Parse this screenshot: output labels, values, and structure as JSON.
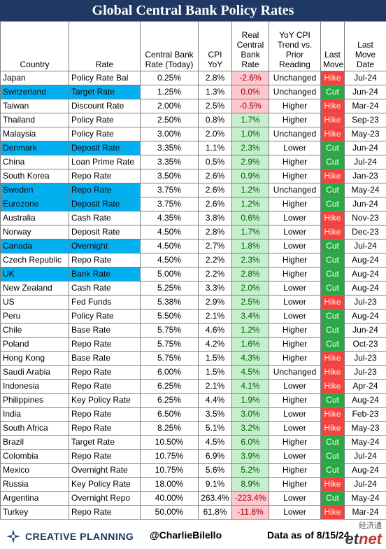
{
  "title": "Global Central Bank Policy Rates",
  "headers": [
    "Country",
    "Rate",
    "Central Bank Rate (Today)",
    "CPI YoY",
    "Real Central Bank Rate",
    "YoY CPI Trend vs. Prior Reading",
    "Last Move",
    "Last Move Date"
  ],
  "header_display": {
    "country": "Country",
    "rate": "Rate",
    "cbr": "Central Bank Rate (Today)",
    "cpi": "CPI YoY",
    "real": "Real Central Bank Rate",
    "trend": "YoY CPI Trend vs. Prior Reading",
    "move": "Last Move",
    "date": "Last Move Date"
  },
  "rows": [
    {
      "country": "Japan",
      "rate": "Policy Rate Bal",
      "cbr": "0.25%",
      "cpi": "2.8%",
      "real": "-2.6%",
      "trend": "Unchanged",
      "move": "Hike",
      "date": "Jul-24",
      "highlight": false
    },
    {
      "country": "Switzerland",
      "rate": "Target Rate",
      "cbr": "1.25%",
      "cpi": "1.3%",
      "real": "0.0%",
      "trend": "Unchanged",
      "move": "Cut",
      "date": "Jun-24",
      "highlight": true
    },
    {
      "country": "Taiwan",
      "rate": "Discount Rate",
      "cbr": "2.00%",
      "cpi": "2.5%",
      "real": "-0.5%",
      "trend": "Higher",
      "move": "Hike",
      "date": "Mar-24",
      "highlight": false
    },
    {
      "country": "Thailand",
      "rate": "Policy Rate",
      "cbr": "2.50%",
      "cpi": "0.8%",
      "real": "1.7%",
      "trend": "Higher",
      "move": "Hike",
      "date": "Sep-23",
      "highlight": false
    },
    {
      "country": "Malaysia",
      "rate": "Policy Rate",
      "cbr": "3.00%",
      "cpi": "2.0%",
      "real": "1.0%",
      "trend": "Unchanged",
      "move": "Hike",
      "date": "May-23",
      "highlight": false
    },
    {
      "country": "Denmark",
      "rate": "Deposit Rate",
      "cbr": "3.35%",
      "cpi": "1.1%",
      "real": "2.3%",
      "trend": "Lower",
      "move": "Cut",
      "date": "Jun-24",
      "highlight": true
    },
    {
      "country": "China",
      "rate": "Loan Prime Rate",
      "cbr": "3.35%",
      "cpi": "0.5%",
      "real": "2.9%",
      "trend": "Higher",
      "move": "Cut",
      "date": "Jul-24",
      "highlight": false
    },
    {
      "country": "South Korea",
      "rate": "Repo Rate",
      "cbr": "3.50%",
      "cpi": "2.6%",
      "real": "0.9%",
      "trend": "Higher",
      "move": "Hike",
      "date": "Jan-23",
      "highlight": false
    },
    {
      "country": "Sweden",
      "rate": "Repo Rate",
      "cbr": "3.75%",
      "cpi": "2.6%",
      "real": "1.2%",
      "trend": "Unchanged",
      "move": "Cut",
      "date": "May-24",
      "highlight": true
    },
    {
      "country": "Eurozone",
      "rate": "Deposit Rate",
      "cbr": "3.75%",
      "cpi": "2.6%",
      "real": "1.2%",
      "trend": "Higher",
      "move": "Cut",
      "date": "Jun-24",
      "highlight": true
    },
    {
      "country": "Australia",
      "rate": "Cash Rate",
      "cbr": "4.35%",
      "cpi": "3.8%",
      "real": "0.6%",
      "trend": "Lower",
      "move": "Hike",
      "date": "Nov-23",
      "highlight": false
    },
    {
      "country": "Norway",
      "rate": "Deposit Rate",
      "cbr": "4.50%",
      "cpi": "2.8%",
      "real": "1.7%",
      "trend": "Lower",
      "move": "Hike",
      "date": "Dec-23",
      "highlight": false
    },
    {
      "country": "Canada",
      "rate": "Overnight",
      "cbr": "4.50%",
      "cpi": "2.7%",
      "real": "1.8%",
      "trend": "Lower",
      "move": "Cut",
      "date": "Jul-24",
      "highlight": true
    },
    {
      "country": "Czech Republic",
      "rate": "Repo Rate",
      "cbr": "4.50%",
      "cpi": "2.2%",
      "real": "2.3%",
      "trend": "Higher",
      "move": "Cut",
      "date": "Aug-24",
      "highlight": false
    },
    {
      "country": "UK",
      "rate": "Bank Rate",
      "cbr": "5.00%",
      "cpi": "2.2%",
      "real": "2.8%",
      "trend": "Higher",
      "move": "Cut",
      "date": "Aug-24",
      "highlight": true
    },
    {
      "country": "New Zealand",
      "rate": "Cash Rate",
      "cbr": "5.25%",
      "cpi": "3.3%",
      "real": "2.0%",
      "trend": "Lower",
      "move": "Cut",
      "date": "Aug-24",
      "highlight": false
    },
    {
      "country": "US",
      "rate": "Fed Funds",
      "cbr": "5.38%",
      "cpi": "2.9%",
      "real": "2.5%",
      "trend": "Lower",
      "move": "Hike",
      "date": "Jul-23",
      "highlight": false
    },
    {
      "country": "Peru",
      "rate": "Policy Rate",
      "cbr": "5.50%",
      "cpi": "2.1%",
      "real": "3.4%",
      "trend": "Lower",
      "move": "Cut",
      "date": "Aug-24",
      "highlight": false
    },
    {
      "country": "Chile",
      "rate": "Base Rate",
      "cbr": "5.75%",
      "cpi": "4.6%",
      "real": "1.2%",
      "trend": "Higher",
      "move": "Cut",
      "date": "Jun-24",
      "highlight": false
    },
    {
      "country": "Poland",
      "rate": "Repo Rate",
      "cbr": "5.75%",
      "cpi": "4.2%",
      "real": "1.6%",
      "trend": "Higher",
      "move": "Cut",
      "date": "Oct-23",
      "highlight": false
    },
    {
      "country": "Hong Kong",
      "rate": "Base Rate",
      "cbr": "5.75%",
      "cpi": "1.5%",
      "real": "4.3%",
      "trend": "Higher",
      "move": "Hike",
      "date": "Jul-23",
      "highlight": false
    },
    {
      "country": "Saudi Arabia",
      "rate": "Repo Rate",
      "cbr": "6.00%",
      "cpi": "1.5%",
      "real": "4.5%",
      "trend": "Unchanged",
      "move": "Hike",
      "date": "Jul-23",
      "highlight": false
    },
    {
      "country": "Indonesia",
      "rate": "Repo Rate",
      "cbr": "6.25%",
      "cpi": "2.1%",
      "real": "4.1%",
      "trend": "Lower",
      "move": "Hike",
      "date": "Apr-24",
      "highlight": false
    },
    {
      "country": "Philippines",
      "rate": "Key Policy Rate",
      "cbr": "6.25%",
      "cpi": "4.4%",
      "real": "1.9%",
      "trend": "Higher",
      "move": "Cut",
      "date": "Aug-24",
      "highlight": false
    },
    {
      "country": "India",
      "rate": "Repo Rate",
      "cbr": "6.50%",
      "cpi": "3.5%",
      "real": "3.0%",
      "trend": "Lower",
      "move": "Hike",
      "date": "Feb-23",
      "highlight": false
    },
    {
      "country": "South Africa",
      "rate": "Repo Rate",
      "cbr": "8.25%",
      "cpi": "5.1%",
      "real": "3.2%",
      "trend": "Lower",
      "move": "Hike",
      "date": "May-23",
      "highlight": false
    },
    {
      "country": "Brazil",
      "rate": "Target Rate",
      "cbr": "10.50%",
      "cpi": "4.5%",
      "real": "6.0%",
      "trend": "Higher",
      "move": "Cut",
      "date": "May-24",
      "highlight": false
    },
    {
      "country": "Colombia",
      "rate": "Repo Rate",
      "cbr": "10.75%",
      "cpi": "6.9%",
      "real": "3.9%",
      "trend": "Lower",
      "move": "Cut",
      "date": "Jul-24",
      "highlight": false
    },
    {
      "country": "Mexico",
      "rate": "Overnight Rate",
      "cbr": "10.75%",
      "cpi": "5.6%",
      "real": "5.2%",
      "trend": "Higher",
      "move": "Cut",
      "date": "Aug-24",
      "highlight": false
    },
    {
      "country": "Russia",
      "rate": "Key Policy Rate",
      "cbr": "18.00%",
      "cpi": "9.1%",
      "real": "8.9%",
      "trend": "Higher",
      "move": "Hike",
      "date": "Jul-24",
      "highlight": false
    },
    {
      "country": "Argentina",
      "rate": "Overnight Repo",
      "cbr": "40.00%",
      "cpi": "263.4%",
      "real": "-223.4%",
      "trend": "Lower",
      "move": "Cut",
      "date": "May-24",
      "highlight": false
    },
    {
      "country": "Turkey",
      "rate": "Repo Rate",
      "cbr": "50.00%",
      "cpi": "61.8%",
      "real": "-11.8%",
      "trend": "Lower",
      "move": "Hike",
      "date": "Mar-24",
      "highlight": false
    }
  ],
  "footer": {
    "logo_text": "CREATIVE PLANNING",
    "handle": "@CharlieBilello",
    "as_of": "Data as of 8/15/24",
    "watermark_cn": "经济通",
    "watermark_en": "etnet"
  },
  "colors": {
    "title_bg": "#1f3864",
    "highlight": "#00b0f0",
    "hike": "#f4433f",
    "cut": "#29a845",
    "pos_bg": "#c6efce",
    "neg_bg": "#ffc7ce"
  }
}
